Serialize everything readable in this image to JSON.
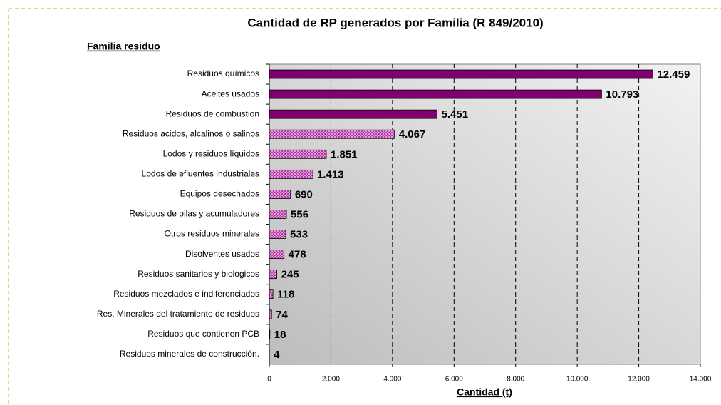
{
  "chart_data": {
    "type": "hbar",
    "title": "Cantidad de RP generados por Familia (R 849/2010)",
    "y_label": "Familia residuo",
    "x_label": "Cantidad (t)",
    "categories": [
      "Residuos químicos",
      "Aceites usados",
      "Residuos de combustion",
      "Residuos acidos, alcalinos o salinos",
      "Lodos y residuos líquidos",
      "Lodos de efluentes industriales",
      "Equipos desechados",
      "Residuos de pilas y acumuladores",
      "Otros residuos minerales",
      "Disolventes usados",
      "Residuos sanitarios y biologicos",
      "Residuos mezclados e indiferenciados",
      "Res. Minerales del tratamiento de residuos",
      "Residuos que contienen PCB",
      "Residuos minerales de construcción."
    ],
    "values": [
      12459,
      10793,
      5451,
      4067,
      1851,
      1413,
      690,
      556,
      533,
      478,
      245,
      118,
      74,
      18,
      4
    ],
    "value_labels": [
      "12.459",
      "10.793",
      "5.451",
      "4.067",
      "1.851",
      "1.413",
      "690",
      "556",
      "533",
      "478",
      "245",
      "118",
      "74",
      "18",
      "4"
    ],
    "fills": [
      "solid",
      "solid",
      "solid",
      "hatched",
      "hatched",
      "hatched",
      "hatched",
      "hatched",
      "hatched",
      "hatched",
      "hatched",
      "hatched",
      "hatched",
      "hatched",
      "hatched"
    ],
    "color": "#800070",
    "hatch_color": "#f2a6e6",
    "xlim": [
      0,
      14000
    ],
    "xticks": [
      0,
      {
        "value": 2000,
        "label": "2.000"
      },
      {
        "value": 4000,
        "label": "4.000"
      },
      {
        "value": 6000,
        "label": "6.000"
      },
      {
        "value": 8000,
        "label": "8.000"
      },
      {
        "value": 10000,
        "label": "10.000"
      },
      {
        "value": 12000,
        "label": "12.000"
      },
      {
        "value": 14000,
        "label": "14.000"
      }
    ],
    "grid": true
  }
}
